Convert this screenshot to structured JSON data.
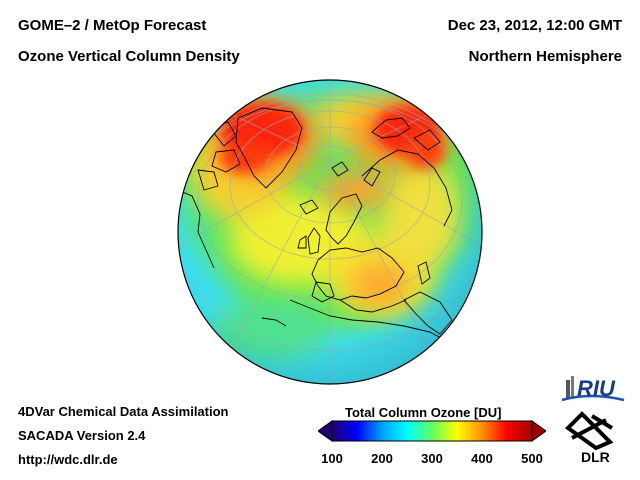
{
  "header": {
    "title_left_1": "GOME–2 / MetOp Forecast",
    "title_left_2": "Ozone Vertical Column Density",
    "title_right_1": "Dec 23, 2012, 12:00 GMT",
    "title_right_2": "Northern Hemisphere"
  },
  "footer": {
    "line_1": "4DVar Chemical Data Assimilation",
    "line_2": "SACADA Version 2.4",
    "line_3": "http://wdc.dlr.de"
  },
  "legend": {
    "title": "Total Column Ozone [DU]",
    "min": 100,
    "max": 500,
    "ticks": [
      "100",
      "200",
      "300",
      "400",
      "500"
    ],
    "stops": [
      "#200070",
      "#0000ff",
      "#00a0ff",
      "#00ffff",
      "#60ff60",
      "#ffff00",
      "#ff9000",
      "#ff0000",
      "#a00000"
    ]
  },
  "logos": {
    "riu": "RIU",
    "dlr": "DLR"
  },
  "colors": {
    "background": "#ffffff",
    "ocean_low": "#3cdcf0",
    "mid": "#50e070",
    "high": "#ffe040",
    "peak": "#ff2010"
  }
}
